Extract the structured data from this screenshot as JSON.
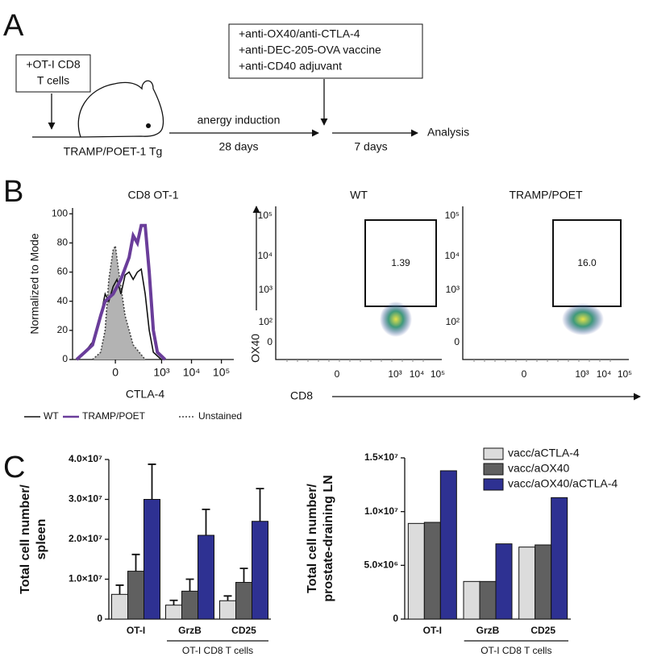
{
  "panel_a": {
    "letter": "A",
    "cells_box": [
      "+OT-I CD8",
      "T cells"
    ],
    "mouse_label": "TRAMP/POET-1 Tg",
    "step1": {
      "above": "anergy induction",
      "below": "28 days"
    },
    "treatment_box": [
      "+anti-OX40/anti-CTLA-4",
      "+anti-DEC-205-OVA vaccine",
      "+anti-CD40 adjuvant"
    ],
    "step2": "7 days",
    "end": "Analysis"
  },
  "panel_b": {
    "letter": "B",
    "y_axis": "OX40",
    "x_axis": "CD8",
    "dotplots": [
      {
        "title": "WT",
        "gate_value": "1.39"
      },
      {
        "title": "TRAMP/POET",
        "gate_value": "16.0"
      }
    ],
    "dot_yticks": [
      "10⁵",
      "10⁴",
      "10³",
      "10²",
      "0"
    ],
    "dot_xticks": [
      "0",
      "10³",
      "10⁴",
      "10⁵"
    ]
  },
  "panel_c": {
    "letter": "C"
  },
  "chart_data": [
    {
      "type": "line",
      "title": "CD8 OT-1",
      "xlabel": "CTLA-4",
      "ylabel": "Normalized to Mode",
      "xscale": "biexponential",
      "xlim": [
        -770,
        260000
      ],
      "xticks": [
        0,
        {
          "value": 1000,
          "label": "10³"
        },
        {
          "value": 10000,
          "label": "10⁴"
        },
        {
          "value": 100000,
          "label": "10⁵"
        }
      ],
      "ylim": [
        0,
        104
      ],
      "yticks": [
        0,
        20,
        40,
        60,
        80,
        100
      ],
      "series": [
        {
          "name": "WT",
          "color": "#111111",
          "x": [
            -560,
            -300,
            -160,
            -80,
            -50,
            -30,
            -10,
            7,
            25,
            47,
            72,
            105,
            150,
            205,
            280,
            385,
            530,
            980
          ],
          "values": [
            0,
            5,
            12,
            30,
            45,
            40,
            50,
            55,
            45,
            58,
            60,
            55,
            60,
            62,
            45,
            20,
            5,
            0
          ]
        },
        {
          "name": "TRAMP/POET",
          "color": "#6a3d9a",
          "x": [
            -560,
            -300,
            -160,
            -80,
            -50,
            -10,
            25,
            72,
            105,
            150,
            205,
            280,
            385,
            530,
            720,
            1300
          ],
          "values": [
            0,
            5,
            10,
            30,
            40,
            45,
            55,
            70,
            85,
            80,
            92,
            92,
            60,
            20,
            5,
            0
          ]
        },
        {
          "name": "Unstained",
          "color": "#444444",
          "fill": "#b3b3b3",
          "dash": true,
          "x": [
            -160,
            -80,
            -50,
            -30,
            -10,
            0,
            15,
            47,
            105,
            280
          ],
          "values": [
            0,
            5,
            20,
            55,
            75,
            78,
            60,
            30,
            10,
            0
          ]
        }
      ]
    },
    {
      "type": "bar",
      "ylabel": [
        "Total cell number/",
        "spleen"
      ],
      "categories": [
        "OT-I",
        "GrzB",
        "CD25"
      ],
      "group_label": "OT-I CD8 T cells",
      "ylim": [
        0,
        40000000
      ],
      "yticks": [
        0,
        {
          "value": 10000000,
          "label": "1.0×10⁷"
        },
        {
          "value": 20000000,
          "label": "2.0×10⁷"
        },
        {
          "value": 30000000,
          "label": "3.0×10⁷"
        },
        {
          "value": 40000000,
          "label": "4.0×10⁷"
        }
      ],
      "series": [
        {
          "color": "#dcdcdc",
          "values": [
            6200000,
            3500000,
            4600000
          ],
          "errors": [
            2300000,
            1200000,
            1200000
          ]
        },
        {
          "color": "#606060",
          "values": [
            12000000,
            7000000,
            9200000
          ],
          "errors": [
            4200000,
            3000000,
            3500000
          ]
        },
        {
          "color": "#2e3192",
          "values": [
            30000000,
            21000000,
            24500000
          ],
          "errors": [
            8800000,
            6500000,
            8200000
          ]
        }
      ]
    },
    {
      "type": "bar",
      "ylabel": [
        "Total cell number/",
        "prostate-draining LN"
      ],
      "categories": [
        "OT-I",
        "GrzB",
        "CD25"
      ],
      "group_label": "OT-I CD8 T cells",
      "legend": "upper right",
      "ylim": [
        0,
        15000000
      ],
      "yticks": [
        0,
        {
          "value": 5000000,
          "label": "5.0×10⁶"
        },
        {
          "value": 10000000,
          "label": "1.0×10⁷"
        },
        {
          "value": 15000000,
          "label": "1.5×10⁷"
        }
      ],
      "series": [
        {
          "name": "vacc/aCTLA-4",
          "color": "#dcdcdc",
          "values": [
            8900000,
            3500000,
            6700000
          ]
        },
        {
          "name": "vacc/aOX40",
          "color": "#606060",
          "values": [
            9000000,
            3500000,
            6900000
          ]
        },
        {
          "name": "vacc/aOX40/aCTLA-4",
          "color": "#2e3192",
          "values": [
            13800000,
            7000000,
            11300000
          ]
        }
      ]
    }
  ]
}
